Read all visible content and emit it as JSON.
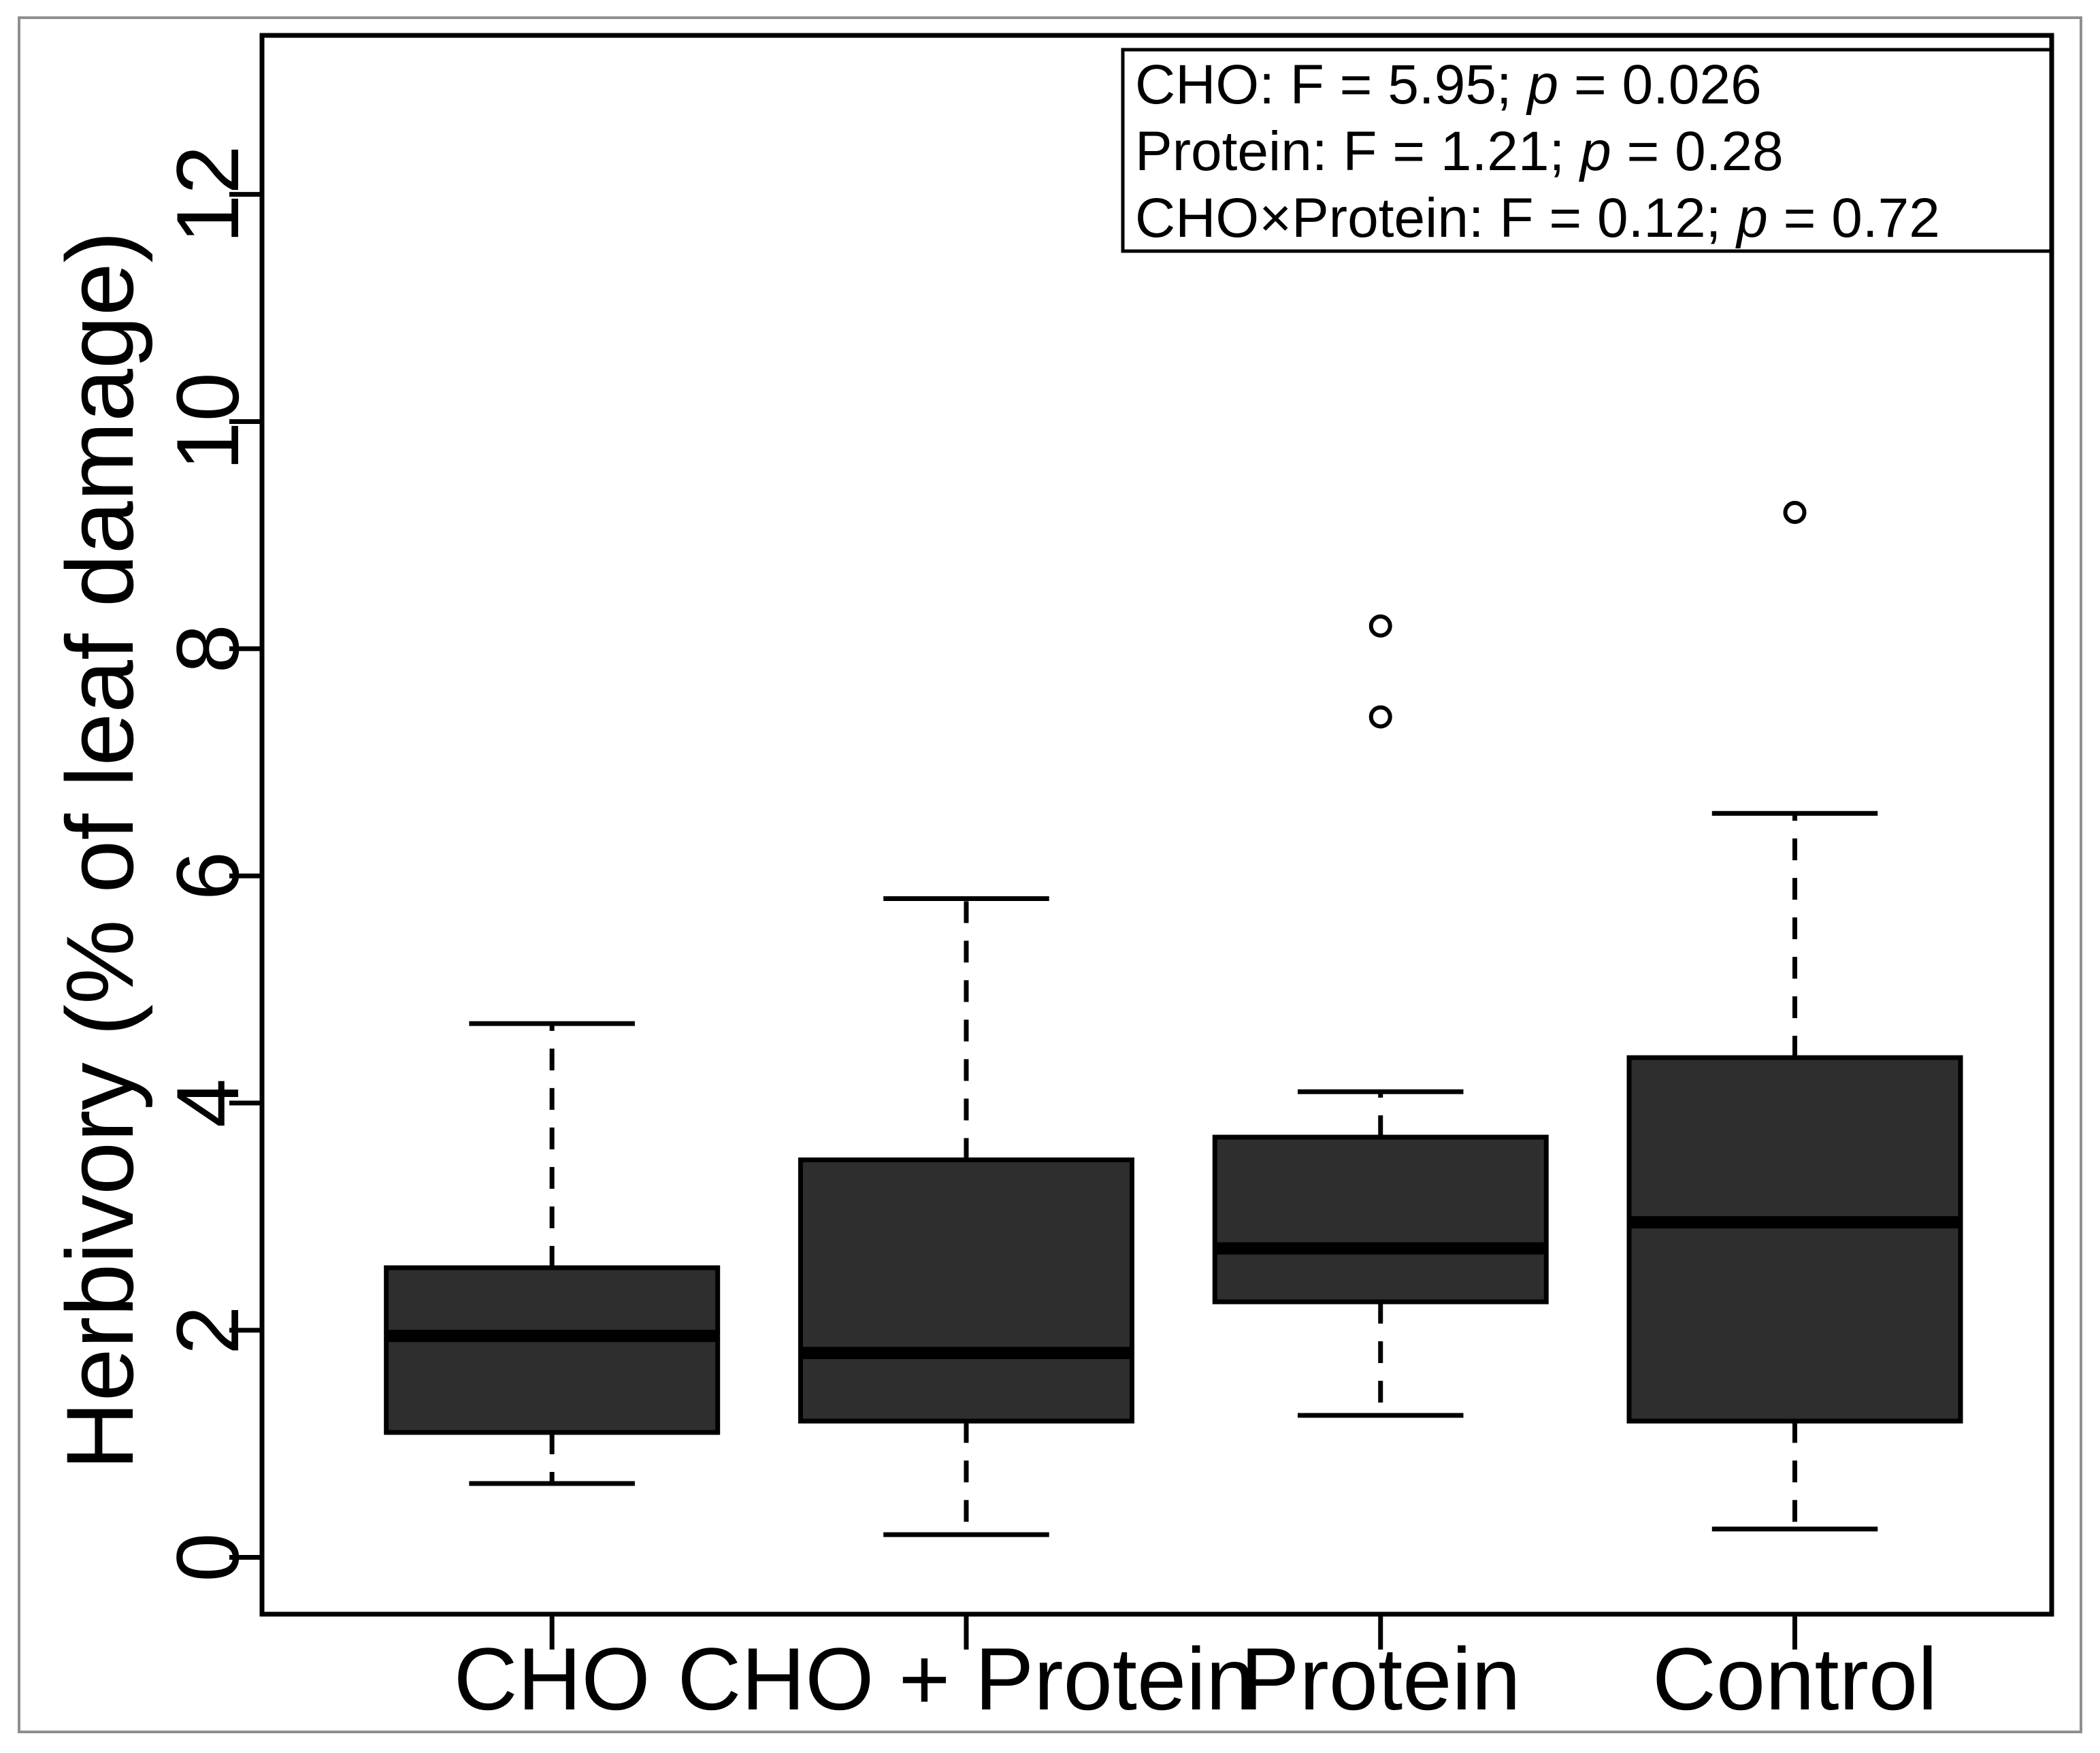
{
  "figure": {
    "background": "#ffffff",
    "outer_border_color": "#8f8f8f",
    "plot_border_color": "#000000"
  },
  "chart_data": {
    "type": "boxplot",
    "title": "",
    "ylabel": "Herbivory (% of leaf damage)",
    "xlabel": "",
    "categories": [
      "CHO",
      "CHO + Protein",
      "Protein",
      "Control"
    ],
    "yticks": [
      0,
      2,
      4,
      6,
      8,
      10,
      12
    ],
    "ylim": [
      -0.5,
      13.4
    ],
    "grid": false,
    "legend_position": "top-right",
    "box_fill": "#2e2e2e",
    "line_color": "#000000",
    "series": [
      {
        "name": "CHO",
        "whisker_low": 0.65,
        "q1": 1.1,
        "median": 1.95,
        "q3": 2.55,
        "whisker_high": 4.7,
        "outliers": []
      },
      {
        "name": "CHO + Protein",
        "whisker_low": 0.2,
        "q1": 1.2,
        "median": 1.8,
        "q3": 3.5,
        "whisker_high": 5.8,
        "outliers": []
      },
      {
        "name": "Protein",
        "whisker_low": 1.25,
        "q1": 2.25,
        "median": 2.72,
        "q3": 3.7,
        "whisker_high": 4.1,
        "outliers": [
          7.4,
          8.2
        ]
      },
      {
        "name": "Control",
        "whisker_low": 0.25,
        "q1": 1.2,
        "median": 2.95,
        "q3": 4.4,
        "whisker_high": 6.55,
        "outliers": [
          9.2
        ]
      }
    ],
    "annotation_box": {
      "lines": [
        {
          "before": "CHO: F = 5.95; ",
          "italic": "p",
          "after": " = 0.026"
        },
        {
          "before": "Protein: F = 1.21; ",
          "italic": "p",
          "after": " = 0.28"
        },
        {
          "before": "CHO×Protein: F = 0.12; ",
          "italic": "p",
          "after": " = 0.72"
        }
      ]
    }
  }
}
